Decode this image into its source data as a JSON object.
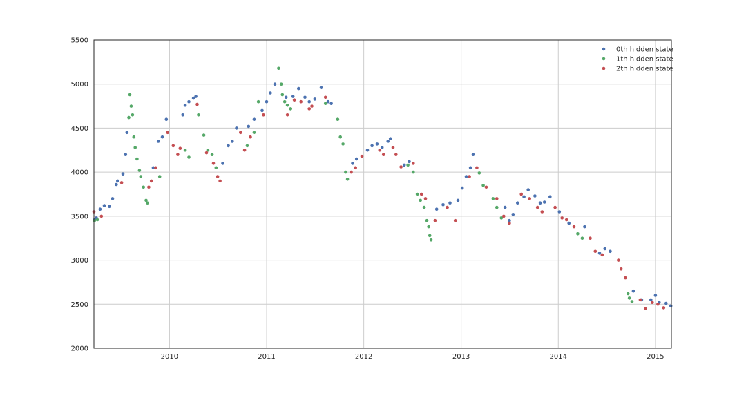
{
  "chart_data": {
    "type": "scatter",
    "title": "",
    "xlabel": "",
    "ylabel": "",
    "x_axis": "date",
    "xlim": [
      "2009-03-23",
      "2015-03-02"
    ],
    "ylim": [
      2000,
      5500
    ],
    "x_ticks": [
      "2010",
      "2011",
      "2012",
      "2013",
      "2014",
      "2015"
    ],
    "y_ticks": [
      2000,
      2500,
      3000,
      3500,
      4000,
      4500,
      5000,
      5500
    ],
    "grid": true,
    "legend": "top-right",
    "series": [
      {
        "name": "0th hidden state",
        "color": "#4c72b0",
        "points": [
          [
            "2009-03-25",
            3460
          ],
          [
            "2009-04-01",
            3480
          ],
          [
            "2009-04-15",
            3580
          ],
          [
            "2009-05-01",
            3620
          ],
          [
            "2009-05-20",
            3610
          ],
          [
            "2009-06-01",
            3700
          ],
          [
            "2009-06-15",
            3860
          ],
          [
            "2009-06-20",
            3900
          ],
          [
            "2009-07-10",
            3980
          ],
          [
            "2009-07-20",
            4200
          ],
          [
            "2009-07-25",
            4450
          ],
          [
            "2009-11-01",
            4050
          ],
          [
            "2009-11-20",
            4350
          ],
          [
            "2009-12-05",
            4400
          ],
          [
            "2009-12-20",
            4600
          ],
          [
            "2010-02-20",
            4650
          ],
          [
            "2010-03-01",
            4760
          ],
          [
            "2010-03-15",
            4800
          ],
          [
            "2010-04-01",
            4840
          ],
          [
            "2010-04-10",
            4860
          ],
          [
            "2010-07-20",
            4100
          ],
          [
            "2010-08-10",
            4300
          ],
          [
            "2010-08-25",
            4350
          ],
          [
            "2010-09-10",
            4500
          ],
          [
            "2010-10-25",
            4520
          ],
          [
            "2010-11-15",
            4600
          ],
          [
            "2010-12-15",
            4700
          ],
          [
            "2011-01-01",
            4800
          ],
          [
            "2011-01-15",
            4900
          ],
          [
            "2011-02-01",
            5000
          ],
          [
            "2011-03-15",
            4850
          ],
          [
            "2011-04-10",
            4860
          ],
          [
            "2011-05-01",
            4950
          ],
          [
            "2011-05-25",
            4850
          ],
          [
            "2011-06-10",
            4800
          ],
          [
            "2011-07-01",
            4830
          ],
          [
            "2011-07-25",
            4960
          ],
          [
            "2011-08-20",
            4800
          ],
          [
            "2011-09-01",
            4780
          ],
          [
            "2011-11-20",
            4100
          ],
          [
            "2011-12-05",
            4150
          ],
          [
            "2012-01-15",
            4250
          ],
          [
            "2012-02-01",
            4300
          ],
          [
            "2012-02-20",
            4320
          ],
          [
            "2012-03-10",
            4280
          ],
          [
            "2012-04-01",
            4350
          ],
          [
            "2012-04-10",
            4380
          ],
          [
            "2012-06-01",
            4080
          ],
          [
            "2012-06-20",
            4120
          ],
          [
            "2012-10-01",
            3580
          ],
          [
            "2012-10-25",
            3630
          ],
          [
            "2012-11-20",
            3650
          ],
          [
            "2012-12-20",
            3680
          ],
          [
            "2013-01-05",
            3820
          ],
          [
            "2013-01-20",
            3950
          ],
          [
            "2013-02-05",
            4050
          ],
          [
            "2013-02-15",
            4200
          ],
          [
            "2013-06-15",
            3600
          ],
          [
            "2013-07-01",
            3450
          ],
          [
            "2013-07-15",
            3520
          ],
          [
            "2013-08-01",
            3650
          ],
          [
            "2013-08-25",
            3720
          ],
          [
            "2013-09-10",
            3800
          ],
          [
            "2013-10-05",
            3730
          ],
          [
            "2013-10-25",
            3650
          ],
          [
            "2013-11-10",
            3660
          ],
          [
            "2013-12-01",
            3720
          ],
          [
            "2014-01-05",
            3550
          ],
          [
            "2014-02-10",
            3420
          ],
          [
            "2014-04-10",
            3380
          ],
          [
            "2014-06-05",
            3080
          ],
          [
            "2014-06-25",
            3130
          ],
          [
            "2014-07-15",
            3100
          ],
          [
            "2014-10-10",
            2650
          ],
          [
            "2014-11-10",
            2550
          ],
          [
            "2014-12-15",
            2550
          ],
          [
            "2015-01-01",
            2600
          ],
          [
            "2015-01-15",
            2520
          ],
          [
            "2015-02-10",
            2510
          ],
          [
            "2015-02-28",
            2480
          ]
        ]
      },
      {
        "name": "1th hidden state",
        "color": "#55a868",
        "points": [
          [
            "2009-03-25",
            3450
          ],
          [
            "2009-04-05",
            3460
          ],
          [
            "2009-08-01",
            4620
          ],
          [
            "2009-08-05",
            4880
          ],
          [
            "2009-08-10",
            4750
          ],
          [
            "2009-08-15",
            4650
          ],
          [
            "2009-08-20",
            4400
          ],
          [
            "2009-08-25",
            4280
          ],
          [
            "2009-09-01",
            4150
          ],
          [
            "2009-09-10",
            4020
          ],
          [
            "2009-09-15",
            3950
          ],
          [
            "2009-09-25",
            3830
          ],
          [
            "2009-10-05",
            3680
          ],
          [
            "2009-10-10",
            3650
          ],
          [
            "2009-11-25",
            3950
          ],
          [
            "2010-03-01",
            4250
          ],
          [
            "2010-03-15",
            4170
          ],
          [
            "2010-04-20",
            4650
          ],
          [
            "2010-05-10",
            4420
          ],
          [
            "2010-05-25",
            4250
          ],
          [
            "2010-06-10",
            4200
          ],
          [
            "2010-06-25",
            4050
          ],
          [
            "2010-10-20",
            4300
          ],
          [
            "2010-11-15",
            4450
          ],
          [
            "2010-12-01",
            4800
          ],
          [
            "2011-02-15",
            5180
          ],
          [
            "2011-02-25",
            5000
          ],
          [
            "2011-03-01",
            4880
          ],
          [
            "2011-03-10",
            4800
          ],
          [
            "2011-03-20",
            4760
          ],
          [
            "2011-04-01",
            4720
          ],
          [
            "2011-08-10",
            4780
          ],
          [
            "2011-09-25",
            4600
          ],
          [
            "2011-10-05",
            4400
          ],
          [
            "2011-10-15",
            4320
          ],
          [
            "2011-10-25",
            4000
          ],
          [
            "2011-11-01",
            3920
          ],
          [
            "2012-06-15",
            4080
          ],
          [
            "2012-07-05",
            4000
          ],
          [
            "2012-07-20",
            3750
          ],
          [
            "2012-08-01",
            3680
          ],
          [
            "2012-08-15",
            3600
          ],
          [
            "2012-08-25",
            3450
          ],
          [
            "2012-09-01",
            3380
          ],
          [
            "2012-09-05",
            3280
          ],
          [
            "2012-09-10",
            3230
          ],
          [
            "2013-03-10",
            3990
          ],
          [
            "2013-03-25",
            3850
          ],
          [
            "2013-05-01",
            3700
          ],
          [
            "2013-05-15",
            3600
          ],
          [
            "2013-06-01",
            3480
          ],
          [
            "2014-03-15",
            3300
          ],
          [
            "2014-04-01",
            3250
          ],
          [
            "2014-09-20",
            2620
          ],
          [
            "2014-09-25",
            2570
          ],
          [
            "2014-10-05",
            2530
          ]
        ]
      },
      {
        "name": "2th hidden state",
        "color": "#c44e52",
        "points": [
          [
            "2009-03-23",
            3550
          ],
          [
            "2009-04-20",
            3500
          ],
          [
            "2009-07-05",
            3880
          ],
          [
            "2009-10-15",
            3830
          ],
          [
            "2009-10-25",
            3900
          ],
          [
            "2009-11-10",
            4050
          ],
          [
            "2009-12-25",
            4450
          ],
          [
            "2010-01-15",
            4300
          ],
          [
            "2010-02-01",
            4200
          ],
          [
            "2010-02-10",
            4270
          ],
          [
            "2010-04-15",
            4770
          ],
          [
            "2010-05-20",
            4220
          ],
          [
            "2010-06-15",
            4100
          ],
          [
            "2010-07-01",
            3950
          ],
          [
            "2010-07-10",
            3900
          ],
          [
            "2010-09-25",
            4450
          ],
          [
            "2010-10-10",
            4250
          ],
          [
            "2010-11-01",
            4400
          ],
          [
            "2010-12-20",
            4650
          ],
          [
            "2011-03-20",
            4650
          ],
          [
            "2011-04-15",
            4820
          ],
          [
            "2011-05-10",
            4800
          ],
          [
            "2011-06-10",
            4720
          ],
          [
            "2011-06-20",
            4750
          ],
          [
            "2011-08-10",
            4850
          ],
          [
            "2011-11-15",
            4000
          ],
          [
            "2011-12-01",
            4050
          ],
          [
            "2011-12-25",
            4180
          ],
          [
            "2012-03-01",
            4250
          ],
          [
            "2012-03-15",
            4200
          ],
          [
            "2012-04-20",
            4280
          ],
          [
            "2012-05-01",
            4200
          ],
          [
            "2012-05-20",
            4060
          ],
          [
            "2012-07-05",
            4100
          ],
          [
            "2012-08-05",
            3750
          ],
          [
            "2012-08-20",
            3700
          ],
          [
            "2012-09-25",
            3450
          ],
          [
            "2012-11-10",
            3600
          ],
          [
            "2012-12-10",
            3450
          ],
          [
            "2013-02-01",
            3950
          ],
          [
            "2013-03-01",
            4050
          ],
          [
            "2013-04-05",
            3830
          ],
          [
            "2013-05-15",
            3700
          ],
          [
            "2013-06-10",
            3500
          ],
          [
            "2013-07-01",
            3420
          ],
          [
            "2013-08-15",
            3750
          ],
          [
            "2013-09-15",
            3700
          ],
          [
            "2013-10-15",
            3600
          ],
          [
            "2013-11-01",
            3550
          ],
          [
            "2013-12-20",
            3600
          ],
          [
            "2014-01-15",
            3480
          ],
          [
            "2014-02-01",
            3460
          ],
          [
            "2014-03-01",
            3380
          ],
          [
            "2014-05-01",
            3250
          ],
          [
            "2014-05-20",
            3100
          ],
          [
            "2014-06-15",
            3060
          ],
          [
            "2014-08-15",
            3000
          ],
          [
            "2014-08-25",
            2900
          ],
          [
            "2014-09-10",
            2800
          ],
          [
            "2014-11-05",
            2550
          ],
          [
            "2014-11-25",
            2450
          ],
          [
            "2014-12-20",
            2520
          ],
          [
            "2015-01-10",
            2500
          ],
          [
            "2015-02-01",
            2460
          ]
        ]
      }
    ]
  }
}
